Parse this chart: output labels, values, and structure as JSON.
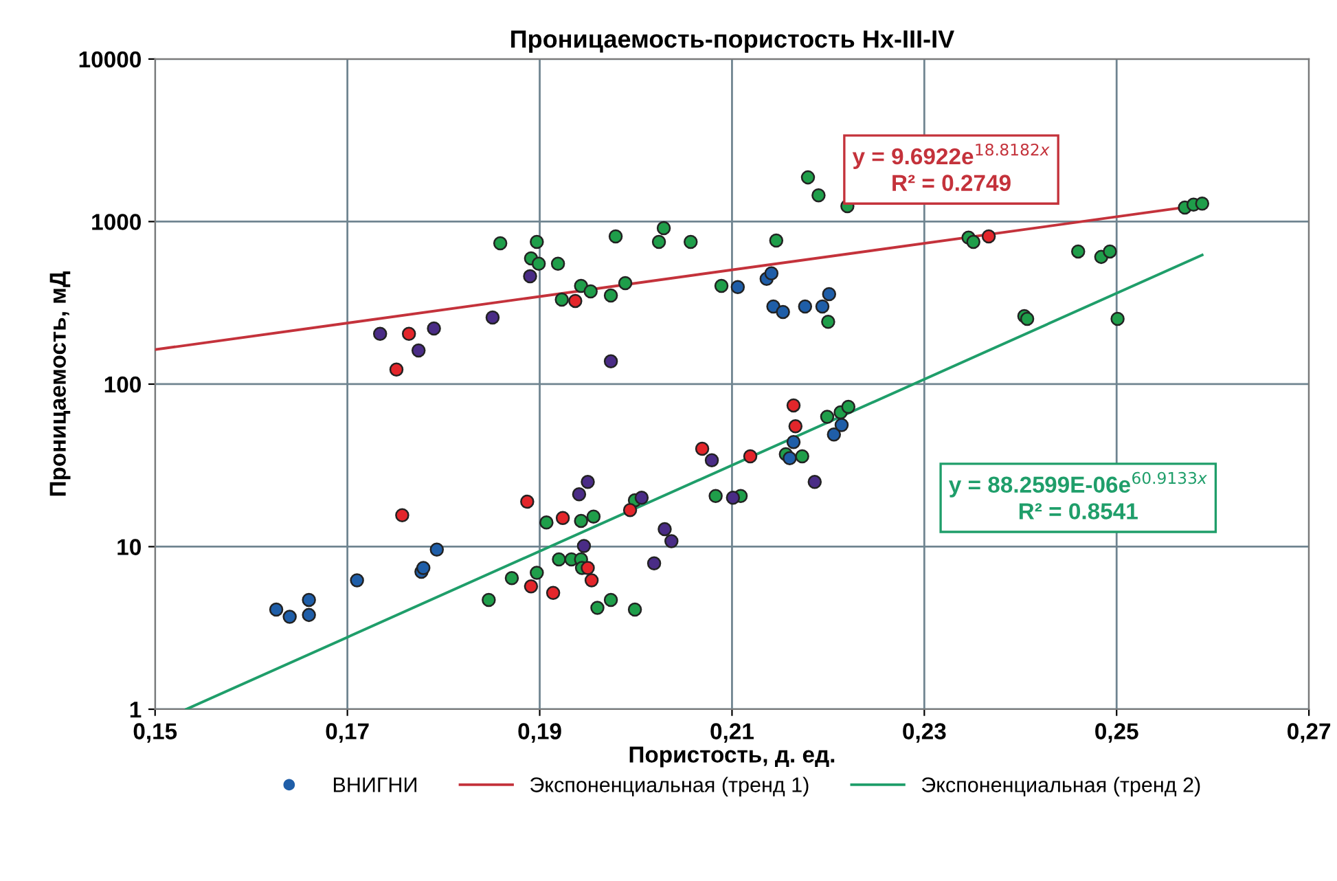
{
  "chart_data": {
    "type": "scatter",
    "title": "Проницаемость-пористость Нх-III-IV",
    "xlabel": "Пористость, д. ед.",
    "ylabel": "Проницаемость, мД",
    "log": "y",
    "grid": true,
    "legend": "bottom",
    "marker": "circle",
    "xlim": [
      0.15,
      0.27
    ],
    "xticks": [
      {
        "value": 0.15,
        "label": "0,15"
      },
      {
        "value": 0.17,
        "label": "0,17"
      },
      {
        "value": 0.19,
        "label": "0,19"
      },
      {
        "value": 0.21,
        "label": "0,21"
      },
      {
        "value": 0.23,
        "label": "0,23"
      },
      {
        "value": 0.25,
        "label": "0,25"
      },
      {
        "value": 0.27,
        "label": "0,27"
      }
    ],
    "ylim": [
      1,
      10000
    ],
    "yticks": [
      1,
      10,
      100,
      1000,
      10000
    ],
    "annotations": [
      "y = 9.6922e$^{18.8182x}$\nR² = 0.2749",
      "y = 88.2599E-06e$^{60.9133x}$\nR² = 0.8541"
    ],
    "series": [
      {
        "color": "#1f9e4a",
        "x": [
          0.1859,
          0.1897,
          0.1891,
          0.1899,
          0.1919,
          0.1923,
          0.1943,
          0.1953,
          0.1974,
          0.1979,
          0.2024,
          0.2029,
          0.2057,
          0.2089,
          0.1989,
          0.2179,
          0.219,
          0.222,
          0.2146,
          0.22,
          0.2346,
          0.2351,
          0.246,
          0.2484,
          0.2493,
          0.2404,
          0.2407,
          0.2501,
          0.2571,
          0.258,
          0.2589,
          0.1907,
          0.1943,
          0.1956,
          0.1897,
          0.1871,
          0.1847,
          0.192,
          0.1933,
          0.1943,
          0.1944,
          0.1974,
          0.196,
          0.1999,
          0.1999,
          0.2083,
          0.2109,
          0.2199,
          0.2213,
          0.2221,
          0.2156,
          0.2173
        ],
        "values": [
          736,
          750,
          594,
          550,
          550,
          331,
          402,
          372,
          351,
          811,
          750,
          911,
          750,
          402,
          418,
          1870,
          1450,
          1245,
          765,
          242,
          796,
          750,
          655,
          606,
          655,
          262,
          252,
          252,
          1220,
          1270,
          1290,
          14.1,
          14.4,
          15.3,
          6.9,
          6.4,
          4.7,
          8.35,
          8.35,
          8.35,
          7.4,
          4.7,
          4.2,
          4.1,
          19.3,
          20.5,
          20.5,
          63,
          67,
          72.5,
          37,
          36
        ]
      },
      {
        "color": "#e3262b",
        "x": [
          0.1764,
          0.1751,
          0.1937,
          0.2367,
          0.1757,
          0.1887,
          0.1924,
          0.1891,
          0.1914,
          0.195,
          0.1954,
          0.2069,
          0.1994,
          0.2164,
          0.2166,
          0.2119
        ],
        "values": [
          204,
          123,
          325,
          811,
          15.6,
          18.9,
          15.0,
          5.7,
          5.2,
          7.4,
          6.2,
          40,
          16.8,
          74,
          55,
          36
        ]
      },
      {
        "color": "#4a2c86",
        "x": [
          0.189,
          0.1734,
          0.1774,
          0.179,
          0.1851,
          0.1974,
          0.195,
          0.1941,
          0.2006,
          0.1946,
          0.203,
          0.2037,
          0.2019,
          0.2079,
          0.2101,
          0.2186
        ],
        "values": [
          461,
          204,
          161,
          220,
          257,
          138,
          25,
          21,
          20,
          10.1,
          12.8,
          10.8,
          7.9,
          34,
          20,
          25
        ]
      },
      {
        "name": "ВНИГНИ",
        "color": "#1f5ea8",
        "x": [
          0.2106,
          0.2136,
          0.2141,
          0.2143,
          0.2153,
          0.2176,
          0.2194,
          0.2201,
          0.1626,
          0.164,
          0.166,
          0.166,
          0.171,
          0.1777,
          0.1779,
          0.1793,
          0.2164,
          0.216,
          0.2206,
          0.2214
        ],
        "values": [
          395,
          444,
          480,
          300,
          278,
          300,
          300,
          358,
          4.1,
          3.7,
          4.7,
          3.8,
          6.2,
          7.0,
          7.4,
          9.6,
          44,
          35,
          49,
          56
        ]
      },
      {
        "type": "line",
        "name": "Экспоненциальная (тренд 1)",
        "color": "#c4323b",
        "marker": "none",
        "x": [
          0.15,
          0.2589
        ],
        "values": [
          163,
          1266
        ]
      },
      {
        "type": "line",
        "name": "Экспоненциальная (тренд 2)",
        "color": "#1f9e6a",
        "marker": "none",
        "x": [
          0.15325,
          0.2589
        ],
        "values": [
          1,
          623
        ]
      }
    ]
  }
}
